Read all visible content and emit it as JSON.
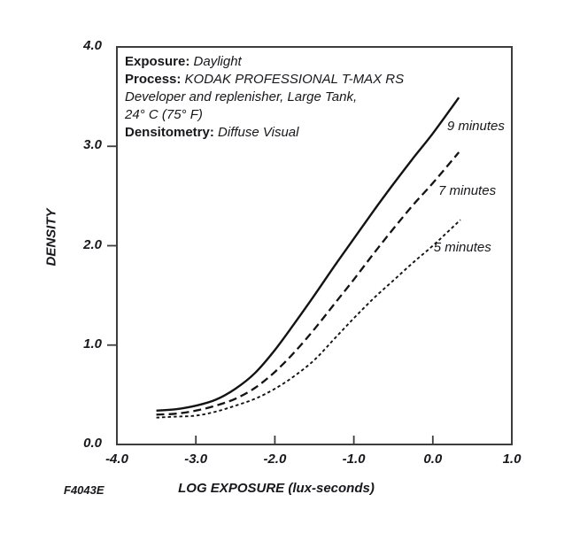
{
  "figure_code": "F4043E",
  "annotation": {
    "lines": [
      {
        "label": "Exposure:",
        "value": " Daylight"
      },
      {
        "label": "Process:",
        "value": " KODAK PROFESSIONAL T-MAX RS"
      },
      {
        "label": "",
        "value": "Developer and replenisher, Large Tank,"
      },
      {
        "label": "",
        "value": "24° C (75° F)"
      },
      {
        "label": "Densitometry:",
        "value": " Diffuse Visual"
      }
    ]
  },
  "chart_data": {
    "type": "line",
    "title": "",
    "xlabel": "LOG EXPOSURE (lux-seconds)",
    "ylabel": "DENSITY",
    "xlim": [
      -4.0,
      1.0
    ],
    "ylim": [
      0.0,
      4.0
    ],
    "grid": false,
    "legend_position": "inline-right",
    "axis_color": "#3d3d40",
    "curve_color": "#131316",
    "x_tick_marks": [
      -3.0,
      -2.0,
      -1.0,
      0.0
    ],
    "x_tick_labels": [
      {
        "v": -4.0,
        "text": "-4.0"
      },
      {
        "v": -3.0,
        "text": "-3.0"
      },
      {
        "v": -2.0,
        "text": "-2.0"
      },
      {
        "v": -1.0,
        "text": "-1.0"
      },
      {
        "v": 0.0,
        "text": "0.0"
      },
      {
        "v": 1.0,
        "text": "1.0"
      }
    ],
    "y_tick_marks": [
      1.0,
      2.0,
      3.0
    ],
    "y_tick_labels": [
      {
        "v": 4.0,
        "text": "4.0"
      },
      {
        "v": 3.0,
        "text": "3.0"
      },
      {
        "v": 2.0,
        "text": "2.0"
      },
      {
        "v": 1.0,
        "text": "1.0"
      },
      {
        "v": 0.0,
        "text": "0.0"
      }
    ],
    "series": [
      {
        "name": "9 minutes",
        "line_style": "solid",
        "label_x": 0.18,
        "label_y": 3.19,
        "x": [
          -3.5,
          -3.25,
          -3.0,
          -2.75,
          -2.5,
          -2.25,
          -2.0,
          -1.75,
          -1.5,
          -1.25,
          -1.0,
          -0.75,
          -0.5,
          -0.25,
          0.0,
          0.33
        ],
        "y": [
          0.34,
          0.355,
          0.39,
          0.45,
          0.56,
          0.72,
          0.95,
          1.22,
          1.5,
          1.79,
          2.07,
          2.35,
          2.62,
          2.88,
          3.13,
          3.49
        ]
      },
      {
        "name": "7 minutes",
        "line_style": "dashed",
        "label_x": 0.07,
        "label_y": 2.54,
        "x": [
          -3.5,
          -3.25,
          -3.0,
          -2.75,
          -2.5,
          -2.25,
          -2.0,
          -1.75,
          -1.5,
          -1.25,
          -1.0,
          -0.75,
          -0.5,
          -0.25,
          0.0,
          0.33
        ],
        "y": [
          0.3,
          0.31,
          0.34,
          0.39,
          0.46,
          0.57,
          0.73,
          0.93,
          1.16,
          1.41,
          1.66,
          1.92,
          2.17,
          2.41,
          2.63,
          2.94
        ]
      },
      {
        "name": "5 minutes",
        "line_style": "short-dashed",
        "label_x": 0.01,
        "label_y": 1.97,
        "x": [
          -3.5,
          -3.25,
          -3.0,
          -2.75,
          -2.5,
          -2.25,
          -2.0,
          -1.75,
          -1.5,
          -1.25,
          -1.0,
          -0.75,
          -0.5,
          -0.25,
          0.0,
          0.35
        ],
        "y": [
          0.27,
          0.28,
          0.29,
          0.33,
          0.39,
          0.46,
          0.56,
          0.69,
          0.85,
          1.06,
          1.27,
          1.47,
          1.65,
          1.83,
          2.0,
          2.26
        ]
      }
    ]
  }
}
